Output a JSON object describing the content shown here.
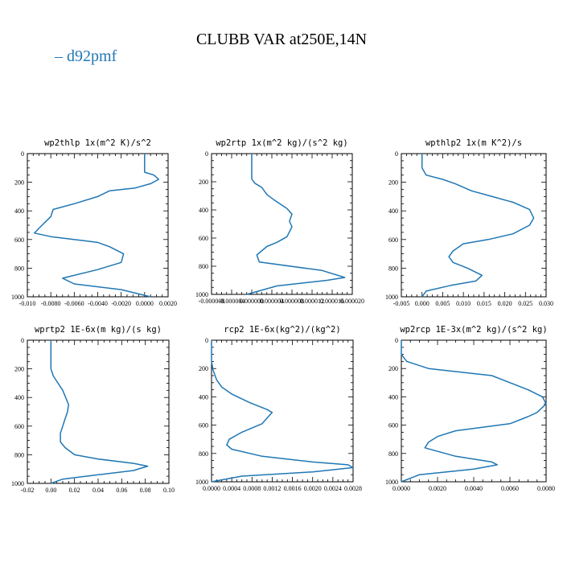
{
  "figure": {
    "title": "CLUBB VAR at250E,14N",
    "legend": [
      {
        "label": "d92pmf",
        "color": "#1f77b4"
      }
    ],
    "line_color": "#1f77b4"
  },
  "chart_data": [
    {
      "type": "line",
      "title": "wp2thlp  1x(m^2 K)/s^2",
      "xlim": [
        -0.01,
        0.002
      ],
      "ylim": [
        1000,
        0
      ],
      "xticks": [
        -0.01,
        -0.008,
        -0.006,
        -0.004,
        -0.002,
        0.0,
        0.002
      ],
      "xtick_labels": [
        "-0.010",
        "-0.0080",
        "-0.0060",
        "-0.0040",
        "-0.0020",
        "0.0000",
        "0.0020"
      ],
      "yticks": [
        0,
        200,
        400,
        600,
        800,
        1000
      ],
      "ytick_labels": [
        "0",
        "200",
        "400",
        "600",
        "800",
        "1000"
      ],
      "series": [
        {
          "x": [
            0.0,
            0.0,
            0.0008,
            0.0012,
            0.0005,
            -0.0008,
            -0.003,
            -0.004,
            -0.006,
            -0.0078,
            -0.008,
            -0.0085,
            -0.009,
            -0.0094,
            -0.008,
            -0.004,
            -0.003,
            -0.0018,
            -0.002,
            -0.004,
            -0.007,
            -0.006,
            -0.002,
            0.0005
          ],
          "y": [
            0,
            130,
            150,
            180,
            210,
            240,
            260,
            300,
            350,
            390,
            440,
            480,
            520,
            555,
            580,
            620,
            650,
            700,
            760,
            810,
            870,
            910,
            950,
            1000
          ]
        }
      ]
    },
    {
      "type": "line",
      "title": "wp2rtp  1x(m^2 kg)/(s^2 kg)",
      "xlim": [
        -8e-06,
        2e-05
      ],
      "ylim": [
        1000,
        0
      ],
      "xticks": [
        -8e-06,
        -4e-06,
        0.0,
        4e-06,
        8e-06,
        1.2e-05,
        1.6e-05,
        2e-05
      ],
      "xtick_labels": [
        "-0.000008",
        "-0.000004",
        "0.000000",
        "0.000004",
        "0.000008",
        "0.000012",
        "0.000016",
        "0.000020"
      ],
      "yticks": [
        0,
        200,
        400,
        600,
        800,
        1000
      ],
      "ytick_labels": [
        "0",
        "200",
        "400",
        "600",
        "800",
        "1000"
      ],
      "series": [
        {
          "x": [
            0.0,
            0.0,
            0.0,
            6e-07,
            2e-06,
            3e-06,
            4.5e-06,
            7e-06,
            8e-06,
            7.5e-06,
            8e-06,
            7e-06,
            5e-06,
            3e-06,
            1e-06,
            1.5e-06,
            1.4e-05,
            1.85e-05,
            1.5e-05,
            5e-06,
            -1e-06
          ],
          "y": [
            0,
            100,
            180,
            210,
            240,
            290,
            330,
            390,
            430,
            480,
            520,
            590,
            630,
            660,
            720,
            770,
            830,
            880,
            900,
            940,
            1000
          ]
        }
      ]
    },
    {
      "type": "line",
      "title": "wpthlp2  1x(m K^2)/s",
      "xlim": [
        -0.005,
        0.03
      ],
      "ylim": [
        1000,
        0
      ],
      "xticks": [
        -0.005,
        0.0,
        0.005,
        0.01,
        0.015,
        0.02,
        0.025,
        0.03
      ],
      "xtick_labels": [
        "-0.005",
        "0.000",
        "0.005",
        "0.010",
        "0.015",
        "0.020",
        "0.025",
        "0.030"
      ],
      "yticks": [
        0,
        200,
        400,
        600,
        800,
        1000
      ],
      "ytick_labels": [
        "0",
        "200",
        "400",
        "600",
        "800",
        "1000"
      ],
      "series": [
        {
          "x": [
            0.0,
            0.0,
            0.001,
            0.005,
            0.008,
            0.012,
            0.017,
            0.022,
            0.026,
            0.027,
            0.026,
            0.022,
            0.016,
            0.01,
            0.0075,
            0.0065,
            0.0075,
            0.011,
            0.0145,
            0.013,
            0.007,
            0.001,
            0.0
          ],
          "y": [
            0,
            100,
            150,
            180,
            210,
            260,
            300,
            340,
            390,
            450,
            500,
            560,
            600,
            630,
            680,
            720,
            760,
            800,
            850,
            890,
            920,
            960,
            1000
          ]
        }
      ]
    },
    {
      "type": "line",
      "title": "wprtp2  1E-6x(m kg)/(s kg)",
      "xlim": [
        -0.02,
        0.1
      ],
      "ylim": [
        1000,
        0
      ],
      "xticks": [
        -0.02,
        0.0,
        0.02,
        0.04,
        0.06,
        0.08,
        0.1
      ],
      "xtick_labels": [
        "-0.02",
        "0.00",
        "0.02",
        "0.04",
        "0.06",
        "0.08",
        "0.10"
      ],
      "yticks": [
        0,
        200,
        400,
        600,
        800,
        1000
      ],
      "ytick_labels": [
        "0",
        "200",
        "400",
        "600",
        "800",
        "1000"
      ],
      "series": [
        {
          "x": [
            0.0,
            0.0,
            0.0,
            0.002,
            0.006,
            0.01,
            0.015,
            0.014,
            0.012,
            0.01,
            0.008,
            0.008,
            0.012,
            0.02,
            0.04,
            0.07,
            0.082,
            0.07,
            0.04,
            0.01,
            0.0
          ],
          "y": [
            0,
            100,
            200,
            250,
            300,
            350,
            450,
            500,
            550,
            600,
            650,
            710,
            750,
            800,
            830,
            860,
            880,
            910,
            940,
            970,
            1000
          ]
        }
      ]
    },
    {
      "type": "line",
      "title": "rcp2  1E-6x(kg^2)/(kg^2)",
      "xlim": [
        0.0,
        0.0028
      ],
      "ylim": [
        1000,
        0
      ],
      "xticks": [
        0.0,
        0.0004,
        0.0008,
        0.0012,
        0.0016,
        0.002,
        0.0024,
        0.0028
      ],
      "xtick_labels": [
        "0.0000",
        "0.0004",
        "0.0008",
        "0.0012",
        "0.0016",
        "0.0020",
        "0.0024",
        "0.0028"
      ],
      "yticks": [
        0,
        200,
        400,
        600,
        800,
        1000
      ],
      "ytick_labels": [
        "0",
        "200",
        "400",
        "600",
        "800",
        "1000"
      ],
      "series": [
        {
          "x": [
            0.0,
            0.0,
            3e-05,
            0.0001,
            0.0002,
            0.0004,
            0.00075,
            0.0011,
            0.0012,
            0.001,
            0.0006,
            0.00035,
            0.0003,
            0.0004,
            0.001,
            0.002,
            0.0027,
            0.0028,
            0.002,
            0.0006,
            0.0
          ],
          "y": [
            0,
            150,
            210,
            280,
            330,
            380,
            440,
            490,
            510,
            590,
            650,
            700,
            740,
            770,
            820,
            860,
            880,
            900,
            930,
            960,
            1000
          ]
        }
      ]
    },
    {
      "type": "line",
      "title": "wp2rcp  1E-3x(m^2 kg)/(s^2 kg)",
      "xlim": [
        0.0,
        0.008
      ],
      "ylim": [
        1000,
        0
      ],
      "xticks": [
        0.0,
        0.002,
        0.004,
        0.006,
        0.008
      ],
      "xtick_labels": [
        "0.0000",
        "0.0020",
        "0.0040",
        "0.0060",
        "0.0080"
      ],
      "yticks": [
        0,
        200,
        400,
        600,
        800,
        1000
      ],
      "ytick_labels": [
        "0",
        "200",
        "400",
        "600",
        "800",
        "1000"
      ],
      "series": [
        {
          "x": [
            0.0,
            0.0,
            0.0003,
            0.0015,
            0.005,
            0.006,
            0.007,
            0.0078,
            0.008,
            0.0075,
            0.007,
            0.006,
            0.003,
            0.002,
            0.0015,
            0.0013,
            0.003,
            0.005,
            0.0053,
            0.004,
            0.001,
            0.0
          ],
          "y": [
            0,
            100,
            150,
            200,
            250,
            300,
            350,
            400,
            450,
            510,
            540,
            590,
            640,
            680,
            720,
            760,
            820,
            860,
            880,
            910,
            950,
            1000
          ]
        }
      ]
    }
  ]
}
